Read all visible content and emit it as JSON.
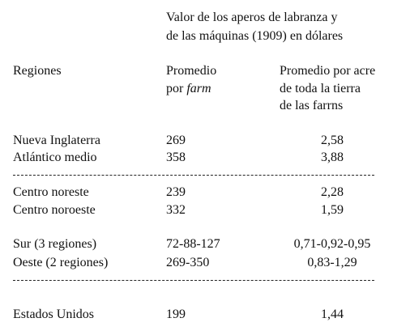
{
  "header": {
    "title_lines": [
      "Valor de los aperos de labranza y",
      "de las máquinas (1909) en dólares"
    ]
  },
  "columns": {
    "region": "Regiones",
    "per_farm": {
      "line1": "Promedio",
      "line2": "por",
      "line2_emphasis": "farm"
    },
    "per_acre": {
      "lines": [
        "Promedio por acre",
        "de toda la tierra",
        "de las farrns"
      ]
    }
  },
  "table": {
    "rows": [
      [
        "Nueva Inglaterra",
        "269",
        "2,58"
      ],
      [
        "Atlántico medio",
        "358",
        "3,88"
      ],
      [
        "Centro noreste",
        "239",
        "2,28"
      ],
      [
        "Centro noroeste",
        "332",
        "1,59"
      ],
      [
        "Sur (3 regiones)",
        "72-88-127",
        "0,71-0,92-0,95"
      ],
      [
        "Oeste (2 regiones)",
        "269-350",
        "0,83-1,29"
      ],
      [
        "Estados Unidos",
        "199",
        "1,44"
      ]
    ]
  }
}
